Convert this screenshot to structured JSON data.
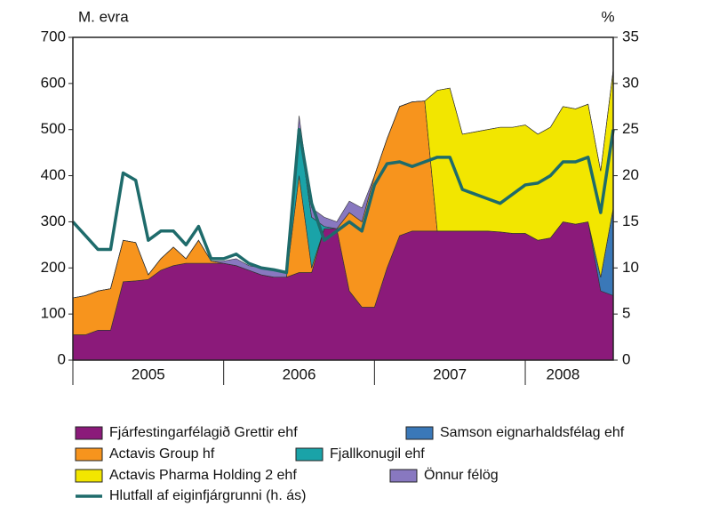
{
  "chart_data": {
    "type": "stacked_area_line",
    "y_unit_label": "M. evra",
    "y2_unit_label": "%",
    "categories": [
      null,
      null,
      null,
      null,
      null,
      null,
      "2005",
      null,
      null,
      null,
      null,
      null,
      null,
      null,
      null,
      null,
      null,
      null,
      "2006",
      null,
      null,
      null,
      null,
      null,
      null,
      null,
      null,
      null,
      null,
      null,
      "2007",
      null,
      null,
      null,
      null,
      null,
      null,
      null,
      null,
      "2008",
      null,
      null,
      null,
      null
    ],
    "ylim": [
      0,
      700
    ],
    "yticks": [
      0,
      100,
      200,
      300,
      400,
      500,
      600,
      700
    ],
    "y2lim": [
      0,
      35
    ],
    "y2ticks": [
      0,
      5,
      10,
      15,
      20,
      25,
      30,
      35
    ],
    "series": [
      {
        "name": "Fjárfestingarfélagið Grettir ehf",
        "color": "#8b1a7a",
        "values": [
          55,
          55,
          65,
          65,
          170,
          172,
          175,
          195,
          205,
          210,
          210,
          210,
          210,
          205,
          195,
          185,
          180,
          180,
          190,
          190,
          285,
          285,
          150,
          115,
          115,
          200,
          270,
          280,
          280,
          280,
          280,
          280,
          280,
          280,
          278,
          275,
          275,
          260,
          265,
          300,
          295,
          300,
          150,
          140
        ]
      },
      {
        "name": "Samson eignarhaldsfélag ehf",
        "color": "#3a78b8",
        "values": [
          0,
          0,
          0,
          0,
          0,
          0,
          0,
          0,
          0,
          0,
          0,
          0,
          0,
          0,
          0,
          0,
          0,
          0,
          0,
          0,
          0,
          0,
          0,
          0,
          0,
          0,
          0,
          0,
          0,
          0,
          0,
          0,
          0,
          0,
          0,
          0,
          0,
          0,
          0,
          0,
          0,
          0,
          30,
          190
        ]
      },
      {
        "name": "Actavis Group hf",
        "color": "#f7941d",
        "values": [
          80,
          85,
          85,
          90,
          90,
          83,
          10,
          25,
          40,
          10,
          50,
          5,
          0,
          0,
          0,
          0,
          0,
          0,
          210,
          10,
          0,
          0,
          170,
          185,
          285,
          280,
          280,
          280,
          282,
          0,
          0,
          0,
          0,
          0,
          0,
          0,
          0,
          0,
          0,
          0,
          0,
          0,
          0,
          0
        ]
      },
      {
        "name": "Fjallkonugil ehf",
        "color": "#1aa3a8",
        "values": [
          0,
          0,
          0,
          0,
          0,
          0,
          0,
          0,
          0,
          0,
          0,
          0,
          0,
          0,
          0,
          0,
          0,
          0,
          100,
          110,
          5,
          0,
          0,
          0,
          0,
          0,
          0,
          0,
          0,
          0,
          0,
          0,
          0,
          0,
          0,
          0,
          0,
          0,
          0,
          0,
          0,
          0,
          0,
          0
        ]
      },
      {
        "name": "Actavis Pharma Holding 2 ehf",
        "color": "#f2e600",
        "values": [
          0,
          0,
          0,
          0,
          0,
          0,
          0,
          0,
          0,
          0,
          0,
          0,
          0,
          0,
          0,
          0,
          0,
          0,
          0,
          0,
          0,
          0,
          0,
          0,
          0,
          0,
          0,
          0,
          0,
          305,
          310,
          210,
          215,
          220,
          227,
          230,
          235,
          230,
          240,
          250,
          250,
          255,
          230,
          300
        ]
      },
      {
        "name": "Önnur félög",
        "color": "#8878c0",
        "values": [
          0,
          0,
          0,
          0,
          0,
          0,
          0,
          0,
          0,
          0,
          0,
          0,
          5,
          15,
          10,
          15,
          15,
          10,
          30,
          20,
          20,
          15,
          25,
          30,
          0,
          0,
          0,
          0,
          0,
          0,
          0,
          0,
          0,
          0,
          0,
          0,
          0,
          0,
          0,
          0,
          0,
          0,
          0,
          0
        ]
      },
      {
        "name": "Hlutfall af eiginfjárgrunni (h. ás)",
        "color": "#1e6b6b",
        "axis": "y2",
        "values": [
          15,
          13.5,
          12,
          12,
          20.3,
          19.5,
          13,
          14,
          14,
          12.5,
          14.5,
          11,
          11,
          11.5,
          10.5,
          10,
          9.8,
          9.5,
          25,
          17,
          13,
          14,
          15,
          14,
          19,
          21.3,
          21.5,
          21,
          21.5,
          22,
          22,
          18.5,
          18,
          17.5,
          17,
          18,
          19,
          19.2,
          20,
          21.5,
          21.5,
          22,
          16,
          25
        ]
      }
    ]
  }
}
